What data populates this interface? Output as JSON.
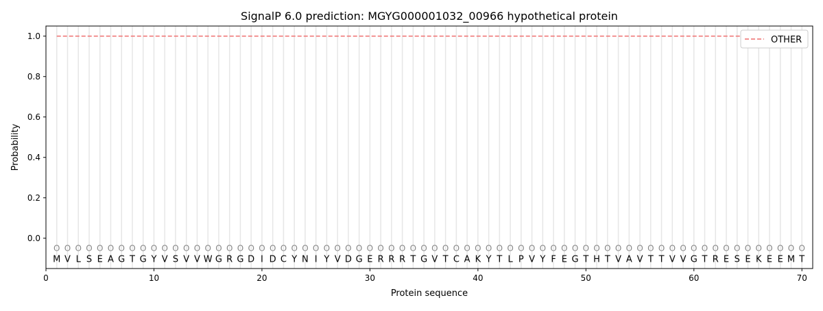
{
  "chart_data": {
    "type": "line",
    "title": "SignalP 6.0 prediction: MGYG000001032_00966 hypothetical protein",
    "xlabel": "Protein sequence",
    "ylabel": "Probability",
    "xlim": [
      0,
      71
    ],
    "ylim": [
      -0.15,
      1.05
    ],
    "xticks": [
      0,
      10,
      20,
      30,
      40,
      50,
      60,
      70
    ],
    "yticks": [
      0.0,
      0.2,
      0.4,
      0.6,
      0.8,
      1.0
    ],
    "sequence": [
      "M",
      "V",
      "L",
      "S",
      "E",
      "A",
      "G",
      "T",
      "G",
      "Y",
      "V",
      "S",
      "V",
      "V",
      "W",
      "G",
      "R",
      "G",
      "D",
      "I",
      "D",
      "C",
      "Y",
      "N",
      "I",
      "Y",
      "V",
      "D",
      "G",
      "E",
      "R",
      "R",
      "R",
      "T",
      "G",
      "V",
      "T",
      "C",
      "A",
      "K",
      "Y",
      "T",
      "L",
      "P",
      "V",
      "Y",
      "F",
      "E",
      "G",
      "T",
      "H",
      "T",
      "V",
      "A",
      "V",
      "T",
      "T",
      "V",
      "V",
      "G",
      "T",
      "R",
      "E",
      "S",
      "E",
      "K",
      "E",
      "E",
      "M",
      "T"
    ],
    "predicted_label": "O",
    "series": [
      {
        "name": "OTHER",
        "color": "#f08080",
        "style": "dashed",
        "x_range": [
          1,
          70
        ],
        "value": 1.0
      }
    ],
    "legend": "top-right",
    "grid": false
  }
}
